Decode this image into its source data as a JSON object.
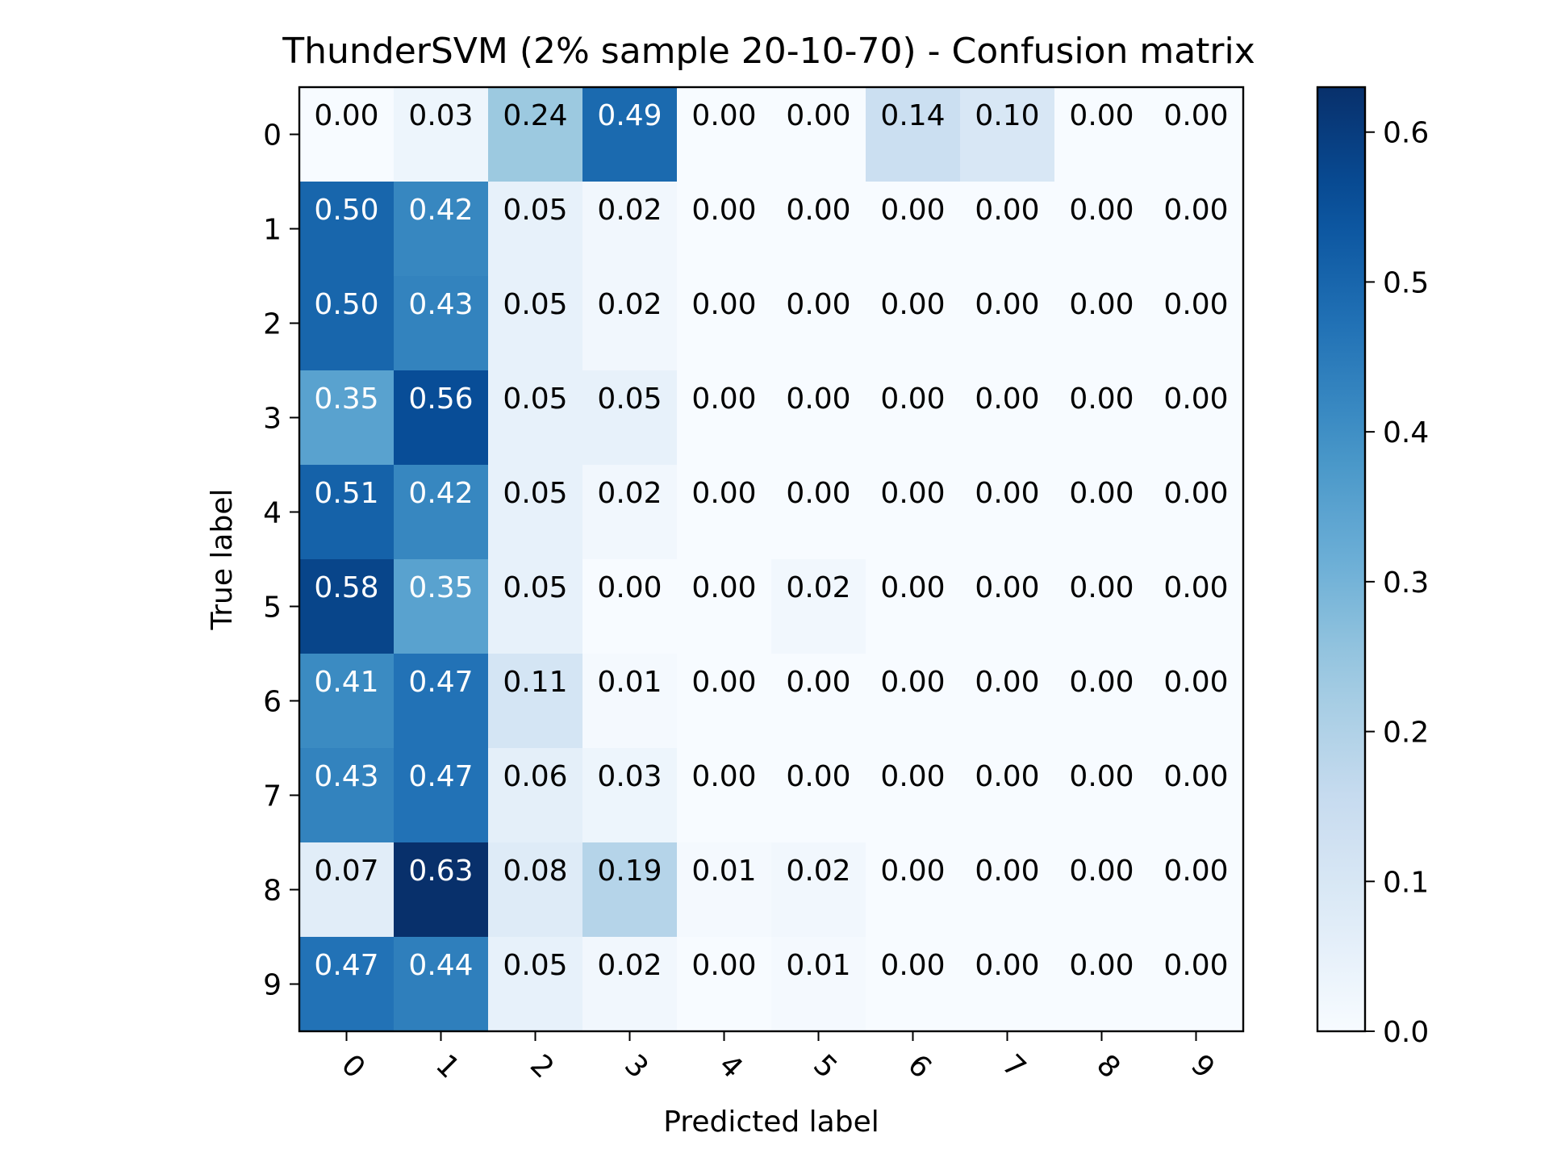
{
  "chart_data": {
    "type": "heatmap",
    "title": "ThunderSVM (2% sample 20-10-70) - Confusion matrix",
    "xlabel": "Predicted label",
    "ylabel": "True label",
    "x_categories": [
      "0",
      "1",
      "2",
      "3",
      "4",
      "5",
      "6",
      "7",
      "8",
      "9"
    ],
    "y_categories": [
      "0",
      "1",
      "2",
      "3",
      "4",
      "5",
      "6",
      "7",
      "8",
      "9"
    ],
    "values": [
      [
        0.0,
        0.03,
        0.24,
        0.49,
        0.0,
        0.0,
        0.14,
        0.1,
        0.0,
        0.0
      ],
      [
        0.5,
        0.42,
        0.05,
        0.02,
        0.0,
        0.0,
        0.0,
        0.0,
        0.0,
        0.0
      ],
      [
        0.5,
        0.43,
        0.05,
        0.02,
        0.0,
        0.0,
        0.0,
        0.0,
        0.0,
        0.0
      ],
      [
        0.35,
        0.56,
        0.05,
        0.05,
        0.0,
        0.0,
        0.0,
        0.0,
        0.0,
        0.0
      ],
      [
        0.51,
        0.42,
        0.05,
        0.02,
        0.0,
        0.0,
        0.0,
        0.0,
        0.0,
        0.0
      ],
      [
        0.58,
        0.35,
        0.05,
        0.0,
        0.0,
        0.02,
        0.0,
        0.0,
        0.0,
        0.0
      ],
      [
        0.41,
        0.47,
        0.11,
        0.01,
        0.0,
        0.0,
        0.0,
        0.0,
        0.0,
        0.0
      ],
      [
        0.43,
        0.47,
        0.06,
        0.03,
        0.0,
        0.0,
        0.0,
        0.0,
        0.0,
        0.0
      ],
      [
        0.07,
        0.63,
        0.08,
        0.19,
        0.01,
        0.02,
        0.0,
        0.0,
        0.0,
        0.0
      ],
      [
        0.47,
        0.44,
        0.05,
        0.02,
        0.0,
        0.01,
        0.0,
        0.0,
        0.0,
        0.0
      ]
    ],
    "colormap": "Blues",
    "colorbar": {
      "range": [
        0.0,
        0.63
      ],
      "ticks": [
        0.0,
        0.1,
        0.2,
        0.3,
        0.4,
        0.5,
        0.6
      ],
      "tick_labels": [
        "0.0",
        "0.1",
        "0.2",
        "0.3",
        "0.4",
        "0.5",
        "0.6"
      ]
    },
    "text_threshold": 0.315,
    "text_colors": {
      "light": "#ffffff",
      "dark": "#000000"
    },
    "xtick_rotation": 45
  }
}
